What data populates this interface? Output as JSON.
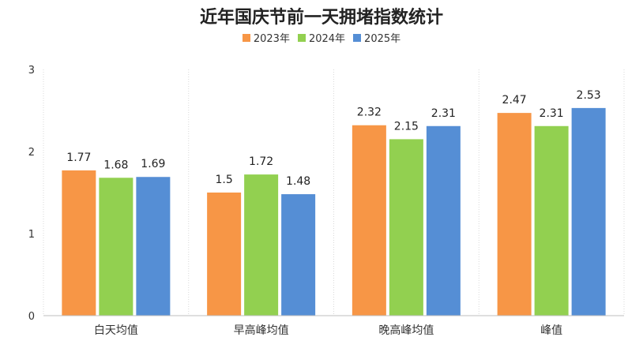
{
  "chart_data": {
    "type": "bar",
    "title": "近年国庆节前一天拥堵指数统计",
    "categories": [
      "白天均值",
      "早高峰均值",
      "晚高峰均值",
      "峰值"
    ],
    "series": [
      {
        "name": "2023年",
        "color": "#F79646",
        "values": [
          1.77,
          1.5,
          2.32,
          2.47
        ]
      },
      {
        "name": "2024年",
        "color": "#92D050",
        "values": [
          1.68,
          1.72,
          2.15,
          2.31
        ]
      },
      {
        "name": "2025年",
        "color": "#558ED5",
        "values": [
          1.69,
          1.48,
          2.31,
          2.53
        ]
      }
    ],
    "data_labels": [
      [
        "1.77",
        "1.5",
        "2.32",
        "2.47"
      ],
      [
        "1.68",
        "1.72",
        "2.15",
        "2.31"
      ],
      [
        "1.69",
        "1.48",
        "2.31",
        "2.53"
      ]
    ],
    "yticks": [
      0,
      1,
      2,
      3
    ],
    "ylim": [
      0,
      3
    ],
    "xlabel": "",
    "ylabel": "",
    "legend_position": "top-center",
    "grid": "vertical-dotted"
  }
}
